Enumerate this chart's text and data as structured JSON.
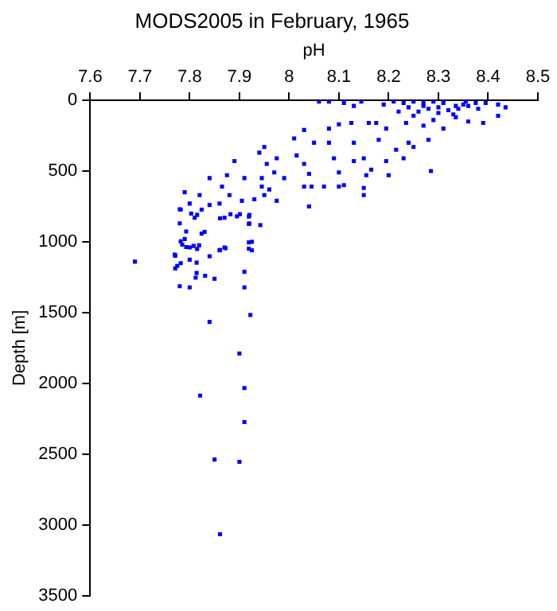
{
  "chart_data": {
    "type": "scatter",
    "title": "MODS2005 in February, 1965",
    "xlabel": "pH",
    "ylabel": "Depth [m]",
    "xlim": [
      7.6,
      8.5
    ],
    "xticks": [
      7.6,
      7.7,
      7.8,
      7.9,
      8,
      8.1,
      8.2,
      8.3,
      8.4,
      8.5
    ],
    "ylim": [
      3500,
      0
    ],
    "yticks": [
      0,
      500,
      1000,
      1500,
      2000,
      2500,
      3000,
      3500
    ],
    "grid": false,
    "legend": false,
    "marker": "square",
    "series": [
      {
        "color": "#0000ff",
        "x": [
          8.06,
          8.08,
          8.11,
          8.13,
          8.145,
          8.19,
          8.21,
          8.23,
          8.25,
          8.27,
          8.29,
          8.31,
          8.335,
          8.355,
          8.375,
          8.395,
          8.42,
          8.435,
          8.22,
          8.25,
          8.29,
          8.335,
          8.36,
          8.39,
          8.42,
          8.27,
          8.31,
          8.235,
          8.24,
          8.28,
          8.3,
          8.32,
          8.34,
          8.36,
          8.38,
          8.26,
          8.3,
          8.33,
          8.27,
          8.31,
          8.35,
          8.03,
          8.05,
          8.08,
          8.08,
          8.1,
          8.125,
          8.13,
          8.16,
          8.175,
          8.18,
          8.195,
          8.215,
          8.23,
          8.24,
          8.25,
          8.28,
          8.285,
          8.15,
          8.165,
          8.09,
          8.13,
          8.155,
          8.195,
          8.2,
          8.01,
          8.015,
          8.03,
          8.04,
          8.045,
          8.04,
          8.03,
          8.07,
          8.1,
          8.1,
          8.11,
          8.15,
          8.15,
          7.95,
          7.94,
          7.975,
          7.955,
          7.97,
          7.99,
          7.945,
          7.96,
          7.975,
          7.93,
          7.95,
          7.945,
          7.91,
          7.89,
          7.875,
          7.865,
          7.88,
          7.86,
          7.87,
          7.895,
          7.92,
          7.92,
          7.905,
          7.84,
          7.82,
          7.79,
          7.78,
          7.8,
          7.815,
          7.81,
          7.78,
          7.785,
          7.79,
          7.8,
          7.815,
          7.83,
          7.86,
          7.87,
          7.925,
          7.925,
          7.77,
          7.775,
          7.69,
          7.782,
          7.803,
          7.84,
          7.824,
          7.861,
          7.882,
          7.901,
          7.919,
          7.919,
          7.942,
          7.793,
          7.824,
          7.782,
          7.793,
          7.808,
          7.819,
          7.919,
          7.919,
          7.861,
          7.872,
          7.771,
          7.782,
          7.8,
          7.814,
          7.84,
          7.771,
          7.814,
          7.812,
          7.831,
          7.85,
          7.91,
          7.78,
          7.8,
          7.91,
          7.922,
          7.84,
          7.9,
          7.91,
          7.821,
          7.91,
          7.85,
          7.9,
          7.861
        ],
        "values": [
          10,
          10,
          20,
          40,
          10,
          30,
          10,
          20,
          10,
          40,
          10,
          20,
          40,
          10,
          20,
          20,
          30,
          50,
          80,
          110,
          140,
          120,
          150,
          160,
          110,
          180,
          200,
          160,
          50,
          60,
          50,
          70,
          60,
          40,
          60,
          80,
          90,
          100,
          20,
          0,
          30,
          210,
          300,
          200,
          300,
          170,
          160,
          300,
          160,
          160,
          280,
          200,
          350,
          410,
          300,
          330,
          280,
          500,
          410,
          490,
          410,
          430,
          530,
          430,
          530,
          270,
          390,
          450,
          520,
          610,
          750,
          610,
          610,
          510,
          610,
          600,
          620,
          670,
          330,
          370,
          410,
          450,
          510,
          550,
          550,
          630,
          710,
          700,
          670,
          610,
          550,
          430,
          530,
          610,
          670,
          730,
          830,
          820,
          810,
          870,
          710,
          550,
          670,
          650,
          770,
          730,
          810,
          830,
          870,
          1020,
          980,
          1040,
          1050,
          930,
          1060,
          1040,
          1000,
          1060,
          1090,
          1170,
          1140,
          773,
          801,
          740,
          773,
          834,
          805,
          805,
          822,
          874,
          882,
          927,
          943,
          997,
          1037,
          1029,
          1025,
          1004,
          1049,
          1057,
          1045,
          1098,
          1151,
          1126,
          1147,
          1102,
          1188,
          1220,
          1253,
          1240,
          1261,
          1212,
          1314,
          1322,
          1322,
          1517,
          1566,
          1789,
          2033,
          2086,
          2273,
          2538,
          2554,
          3066
        ]
      }
    ]
  }
}
